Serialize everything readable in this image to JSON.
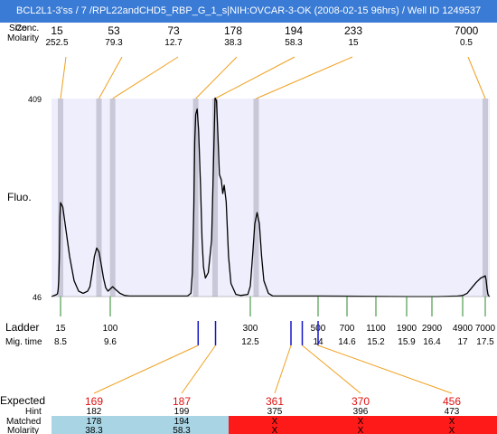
{
  "title": "BCL2L1-3'ss / 7 /RPL22andCHD5_RBP_G_1_s|NIH:OVCAR-3-OK (2008-02-15 96hrs) / Well ID 1249537",
  "header": {
    "size_label": "Size",
    "conc_label": "Conc.",
    "molarity_label": "Molarity"
  },
  "top_peaks": [
    {
      "size": "15",
      "molarity": "252.5"
    },
    {
      "size": "53",
      "molarity": "79.3"
    },
    {
      "size": "73",
      "molarity": "12.7"
    },
    {
      "size": "178",
      "molarity": "38.3"
    },
    {
      "size": "194",
      "molarity": "58.3"
    },
    {
      "size": "233",
      "molarity": "15"
    },
    {
      "size": "7000",
      "molarity": "0.5"
    }
  ],
  "ladder": {
    "label": "Ladder",
    "time_label": "Mig. time",
    "marks": [
      {
        "size": "15",
        "time": "8.5"
      },
      {
        "size": "100",
        "time": "9.6"
      },
      {
        "size": "300",
        "time": "12.5"
      },
      {
        "size": "500",
        "time": "14"
      },
      {
        "size": "700",
        "time": "14.6"
      },
      {
        "size": "1100",
        "time": "15.2"
      },
      {
        "size": "1900",
        "time": "15.9"
      },
      {
        "size": "2900",
        "time": "16.4"
      },
      {
        "size": "4900",
        "time": "17"
      },
      {
        "size": "7000",
        "time": "17.5"
      }
    ]
  },
  "expected_table": {
    "expected_label": "Expected",
    "hint_label": "Hint",
    "matched_label": "Matched",
    "molarity_label": "Molarity",
    "columns": [
      {
        "expected": "169",
        "hint": "182",
        "matched": "178",
        "molarity": "38.3",
        "status": "matched"
      },
      {
        "expected": "187",
        "hint": "199",
        "matched": "194",
        "molarity": "58.3",
        "status": "matched"
      },
      {
        "expected": "361",
        "hint": "375",
        "matched": "X",
        "molarity": "X",
        "status": "missing"
      },
      {
        "expected": "370",
        "hint": "396",
        "matched": "X",
        "molarity": "X",
        "status": "missing"
      },
      {
        "expected": "456",
        "hint": "473",
        "matched": "X",
        "molarity": "X",
        "status": "missing"
      }
    ]
  },
  "colors": {
    "plot_bg": "#eeeefc",
    "trace": "#000000",
    "peak_band": "#c8c8d8",
    "leader": "#f0a020",
    "ladder_tick": "#2a8a2a",
    "hint_tick": "#1515c8",
    "expected_text": "#e01010",
    "matched_bg": "#a8d4e4",
    "missing_bg": "#ff1a1a"
  },
  "chart_data": {
    "type": "line",
    "title": "BCL2L1-3'ss / 7 /RPL22andCHD5_RBP_G_1_s|NIH:OVCAR-3-OK (2008-02-15 96hrs) / Well ID 1249537",
    "xlabel": "Mig. time",
    "ylabel": "Fluo.",
    "ylim": [
      46,
      409
    ],
    "y_ticks": [
      "409",
      "46"
    ],
    "x_scale": "migration time",
    "series": [
      {
        "points": [
          [
            7.0,
            46
          ],
          [
            7.9,
            50
          ],
          [
            8.0,
            52
          ],
          [
            8.1,
            58
          ],
          [
            8.2,
            75
          ],
          [
            8.3,
            120
          ],
          [
            8.4,
            190
          ],
          [
            8.45,
            210
          ],
          [
            8.5,
            218
          ],
          [
            8.55,
            210
          ],
          [
            8.6,
            180
          ],
          [
            8.7,
            120
          ],
          [
            8.8,
            75
          ],
          [
            8.9,
            56
          ],
          [
            9.0,
            52
          ],
          [
            9.1,
            56
          ],
          [
            9.15,
            64
          ],
          [
            9.2,
            90
          ],
          [
            9.25,
            120
          ],
          [
            9.3,
            135
          ],
          [
            9.35,
            128
          ],
          [
            9.4,
            105
          ],
          [
            9.45,
            80
          ],
          [
            9.5,
            62
          ],
          [
            9.55,
            56
          ],
          [
            9.6,
            60
          ],
          [
            9.65,
            64
          ],
          [
            9.7,
            60
          ],
          [
            9.8,
            52
          ],
          [
            9.9,
            48
          ],
          [
            10.0,
            47
          ],
          [
            11.0,
            47
          ],
          [
            11.2,
            47
          ],
          [
            11.27,
            52
          ],
          [
            11.3,
            90
          ],
          [
            11.33,
            210
          ],
          [
            11.35,
            330
          ],
          [
            11.37,
            380
          ],
          [
            11.4,
            390
          ],
          [
            11.43,
            350
          ],
          [
            11.47,
            250
          ],
          [
            11.5,
            150
          ],
          [
            11.53,
            100
          ],
          [
            11.57,
            80
          ],
          [
            11.63,
            90
          ],
          [
            11.7,
            150
          ],
          [
            11.74,
            300
          ],
          [
            11.77,
            410
          ],
          [
            11.8,
            405
          ],
          [
            11.83,
            340
          ],
          [
            11.86,
            270
          ],
          [
            11.9,
            260
          ],
          [
            11.93,
            235
          ],
          [
            11.96,
            250
          ],
          [
            12.0,
            220
          ],
          [
            12.05,
            120
          ],
          [
            12.1,
            70
          ],
          [
            12.2,
            50
          ],
          [
            12.3,
            48
          ],
          [
            12.45,
            50
          ],
          [
            12.5,
            65
          ],
          [
            12.55,
            120
          ],
          [
            12.6,
            180
          ],
          [
            12.65,
            200
          ],
          [
            12.7,
            180
          ],
          [
            12.75,
            120
          ],
          [
            12.8,
            75
          ],
          [
            12.9,
            52
          ],
          [
            13.0,
            47
          ],
          [
            14.0,
            47
          ],
          [
            16.0,
            46
          ],
          [
            16.5,
            46
          ],
          [
            16.9,
            47
          ],
          [
            17.0,
            48
          ],
          [
            17.1,
            52
          ],
          [
            17.2,
            62
          ],
          [
            17.3,
            72
          ],
          [
            17.4,
            80
          ],
          [
            17.5,
            84
          ],
          [
            17.6,
            76
          ],
          [
            17.7,
            60
          ],
          [
            17.8,
            50
          ],
          [
            17.9,
            47
          ],
          [
            18.0,
            46
          ]
        ]
      }
    ],
    "peak_bands_time": [
      8.5,
      9.35,
      9.65,
      11.37,
      11.77,
      12.63,
      17.5
    ],
    "ladder_ticks_time": [
      8.5,
      9.6,
      12.5,
      14.0,
      14.6,
      15.2,
      15.9,
      16.4,
      17.0,
      17.5
    ],
    "hint_ticks_time": [
      11.42,
      11.78,
      13.4,
      13.65,
      14.0
    ]
  }
}
